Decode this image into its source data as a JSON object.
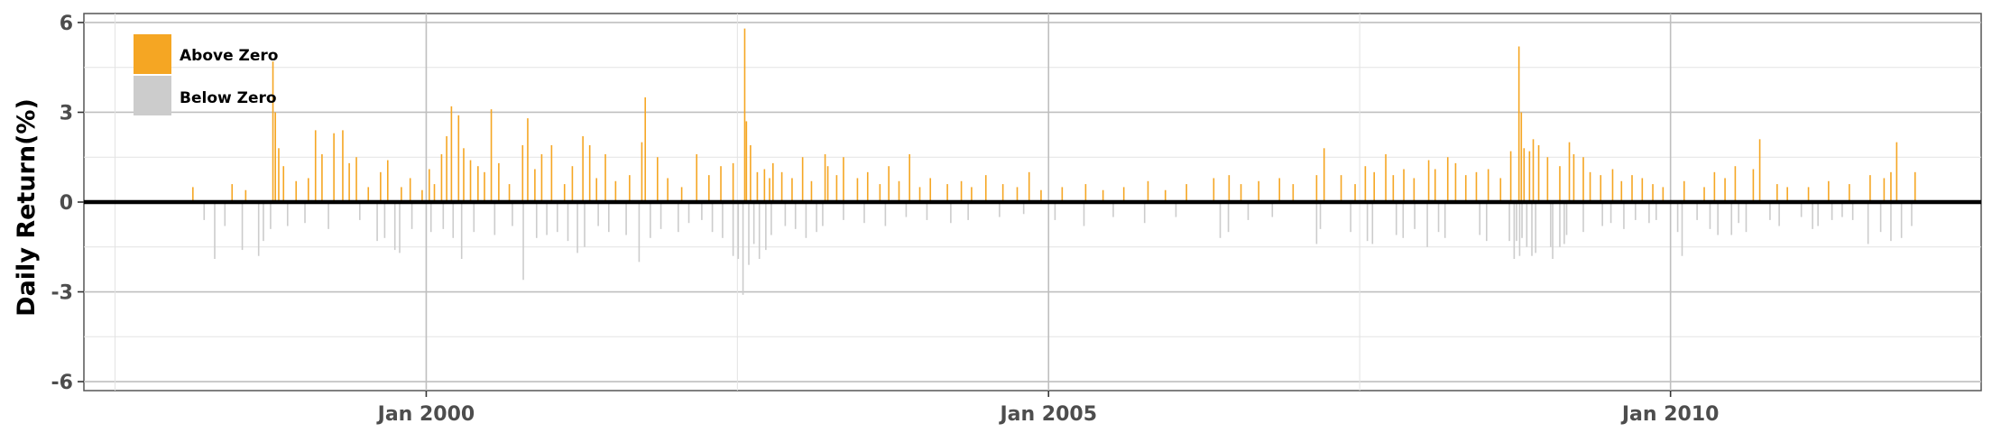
{
  "chart_data": {
    "type": "bar",
    "title": "",
    "xlabel": "",
    "ylabel": "Daily Return(%)",
    "ylim": [
      -6.3,
      6.3
    ],
    "yticks": [
      -6,
      -3,
      0,
      3,
      6
    ],
    "ytick_labels": [
      "-6",
      "-3",
      "0",
      "3",
      "6"
    ],
    "xlim": [
      "1997-04-01",
      "2012-07-01"
    ],
    "xticks": [
      "2000-01-01",
      "2005-01-01",
      "2010-01-01"
    ],
    "xtick_labels": [
      "Jan 2000",
      "Jan 2005",
      "Jan 2010"
    ],
    "grid": true,
    "legend_position": "top-left",
    "colors": {
      "above": "#f5a623",
      "below": "#cccccc",
      "zero_line": "#000000",
      "grid": "#bfbfbf"
    },
    "series": [
      {
        "name": "Above Zero",
        "points": [
          [
            "1998-02-15",
            0.5
          ],
          [
            "1998-06-10",
            0.6
          ],
          [
            "1998-07-20",
            0.4
          ],
          [
            "1998-10-08",
            4.7
          ],
          [
            "1998-10-15",
            3.0
          ],
          [
            "1998-10-25",
            1.8
          ],
          [
            "1998-11-08",
            1.2
          ],
          [
            "1998-12-15",
            0.7
          ],
          [
            "1999-01-20",
            0.8
          ],
          [
            "1999-02-10",
            2.4
          ],
          [
            "1999-03-01",
            1.6
          ],
          [
            "1999-04-05",
            2.3
          ],
          [
            "1999-05-01",
            2.4
          ],
          [
            "1999-05-20",
            1.3
          ],
          [
            "1999-06-10",
            1.5
          ],
          [
            "1999-07-15",
            0.5
          ],
          [
            "1999-08-20",
            1.0
          ],
          [
            "1999-09-10",
            1.4
          ],
          [
            "1999-10-20",
            0.5
          ],
          [
            "1999-11-15",
            0.8
          ],
          [
            "1999-12-20",
            0.4
          ],
          [
            "2000-01-10",
            1.1
          ],
          [
            "2000-01-25",
            0.6
          ],
          [
            "2000-02-15",
            1.6
          ],
          [
            "2000-03-01",
            2.2
          ],
          [
            "2000-03-15",
            3.2
          ],
          [
            "2000-04-05",
            2.9
          ],
          [
            "2000-04-20",
            1.8
          ],
          [
            "2000-05-10",
            1.4
          ],
          [
            "2000-06-01",
            1.2
          ],
          [
            "2000-06-20",
            1.0
          ],
          [
            "2000-07-10",
            3.1
          ],
          [
            "2000-08-01",
            1.3
          ],
          [
            "2000-09-01",
            0.6
          ],
          [
            "2000-10-10",
            1.9
          ],
          [
            "2000-10-25",
            2.8
          ],
          [
            "2000-11-15",
            1.1
          ],
          [
            "2000-12-05",
            1.6
          ],
          [
            "2001-01-03",
            1.9
          ],
          [
            "2001-02-10",
            0.6
          ],
          [
            "2001-03-05",
            1.2
          ],
          [
            "2001-04-05",
            2.2
          ],
          [
            "2001-04-25",
            1.9
          ],
          [
            "2001-05-15",
            0.8
          ],
          [
            "2001-06-10",
            1.6
          ],
          [
            "2001-07-10",
            0.7
          ],
          [
            "2001-08-20",
            0.9
          ],
          [
            "2001-09-25",
            2.0
          ],
          [
            "2001-10-05",
            3.5
          ],
          [
            "2001-11-10",
            1.5
          ],
          [
            "2001-12-10",
            0.8
          ],
          [
            "2002-01-20",
            0.5
          ],
          [
            "2002-03-05",
            1.6
          ],
          [
            "2002-04-10",
            0.9
          ],
          [
            "2002-05-15",
            1.2
          ],
          [
            "2002-06-20",
            1.3
          ],
          [
            "2002-07-24",
            5.8
          ],
          [
            "2002-07-29",
            2.7
          ],
          [
            "2002-08-10",
            1.9
          ],
          [
            "2002-08-30",
            1.0
          ],
          [
            "2002-09-20",
            1.1
          ],
          [
            "2002-10-05",
            0.8
          ],
          [
            "2002-10-15",
            1.3
          ],
          [
            "2002-11-10",
            1.0
          ],
          [
            "2002-12-10",
            0.8
          ],
          [
            "2003-01-10",
            1.5
          ],
          [
            "2003-02-05",
            0.7
          ],
          [
            "2003-03-17",
            1.6
          ],
          [
            "2003-03-25",
            1.2
          ],
          [
            "2003-04-20",
            0.9
          ],
          [
            "2003-05-10",
            1.5
          ],
          [
            "2003-06-20",
            0.8
          ],
          [
            "2003-07-20",
            1.0
          ],
          [
            "2003-08-25",
            0.6
          ],
          [
            "2003-09-20",
            1.2
          ],
          [
            "2003-10-20",
            0.7
          ],
          [
            "2003-11-20",
            1.6
          ],
          [
            "2003-12-20",
            0.5
          ],
          [
            "2004-01-20",
            0.8
          ],
          [
            "2004-03-10",
            0.6
          ],
          [
            "2004-04-20",
            0.7
          ],
          [
            "2004-05-20",
            0.5
          ],
          [
            "2004-07-01",
            0.9
          ],
          [
            "2004-08-20",
            0.6
          ],
          [
            "2004-10-01",
            0.5
          ],
          [
            "2004-11-05",
            1.0
          ],
          [
            "2004-12-10",
            0.4
          ],
          [
            "2005-02-10",
            0.5
          ],
          [
            "2005-04-20",
            0.6
          ],
          [
            "2005-06-10",
            0.4
          ],
          [
            "2005-08-10",
            0.5
          ],
          [
            "2005-10-20",
            0.7
          ],
          [
            "2005-12-10",
            0.4
          ],
          [
            "2006-02-10",
            0.6
          ],
          [
            "2006-05-01",
            0.8
          ],
          [
            "2006-06-15",
            0.9
          ],
          [
            "2006-07-20",
            0.6
          ],
          [
            "2006-09-10",
            0.7
          ],
          [
            "2006-11-10",
            0.8
          ],
          [
            "2006-12-20",
            0.6
          ],
          [
            "2007-02-27",
            0.9
          ],
          [
            "2007-03-21",
            1.8
          ],
          [
            "2007-05-10",
            0.9
          ],
          [
            "2007-06-20",
            0.6
          ],
          [
            "2007-07-20",
            1.2
          ],
          [
            "2007-08-15",
            1.0
          ],
          [
            "2007-09-18",
            1.6
          ],
          [
            "2007-10-10",
            0.9
          ],
          [
            "2007-11-10",
            1.1
          ],
          [
            "2007-12-10",
            0.8
          ],
          [
            "2008-01-22",
            1.4
          ],
          [
            "2008-02-10",
            1.1
          ],
          [
            "2008-03-18",
            1.5
          ],
          [
            "2008-04-10",
            1.3
          ],
          [
            "2008-05-10",
            0.9
          ],
          [
            "2008-06-10",
            1.0
          ],
          [
            "2008-07-15",
            1.1
          ],
          [
            "2008-08-20",
            0.8
          ],
          [
            "2008-09-19",
            1.7
          ],
          [
            "2008-10-13",
            5.2
          ],
          [
            "2008-10-20",
            3.0
          ],
          [
            "2008-10-28",
            1.8
          ],
          [
            "2008-11-13",
            1.7
          ],
          [
            "2008-11-24",
            2.1
          ],
          [
            "2008-12-10",
            1.9
          ],
          [
            "2009-01-05",
            1.5
          ],
          [
            "2009-02-10",
            1.2
          ],
          [
            "2009-03-10",
            2.0
          ],
          [
            "2009-03-23",
            1.6
          ],
          [
            "2009-04-20",
            1.5
          ],
          [
            "2009-05-10",
            1.0
          ],
          [
            "2009-06-10",
            0.9
          ],
          [
            "2009-07-15",
            1.1
          ],
          [
            "2009-08-10",
            0.7
          ],
          [
            "2009-09-10",
            0.9
          ],
          [
            "2009-10-10",
            0.8
          ],
          [
            "2009-11-10",
            0.6
          ],
          [
            "2009-12-10",
            0.5
          ],
          [
            "2010-02-10",
            0.7
          ],
          [
            "2010-04-10",
            0.5
          ],
          [
            "2010-05-10",
            1.0
          ],
          [
            "2010-06-10",
            0.8
          ],
          [
            "2010-07-10",
            1.2
          ],
          [
            "2010-09-01",
            1.1
          ],
          [
            "2010-09-20",
            2.1
          ],
          [
            "2010-11-10",
            0.6
          ],
          [
            "2010-12-10",
            0.5
          ],
          [
            "2011-02-10",
            0.5
          ],
          [
            "2011-04-10",
            0.7
          ],
          [
            "2011-06-10",
            0.6
          ],
          [
            "2011-08-10",
            0.9
          ],
          [
            "2011-09-20",
            0.8
          ],
          [
            "2011-10-10",
            1.0
          ],
          [
            "2011-10-27",
            2.0
          ],
          [
            "2011-12-20",
            1.0
          ]
        ]
      },
      {
        "name": "Below Zero",
        "points": [
          [
            "1998-03-20",
            -0.6
          ],
          [
            "1998-04-20",
            -1.9
          ],
          [
            "1998-05-20",
            -0.8
          ],
          [
            "1998-07-10",
            -1.6
          ],
          [
            "1998-08-27",
            -1.8
          ],
          [
            "1998-09-10",
            -1.3
          ],
          [
            "1998-10-01",
            -0.9
          ],
          [
            "1998-11-20",
            -0.8
          ],
          [
            "1999-01-10",
            -0.7
          ],
          [
            "1999-03-20",
            -0.9
          ],
          [
            "1999-06-20",
            -0.6
          ],
          [
            "1999-08-10",
            -1.3
          ],
          [
            "1999-09-01",
            -1.2
          ],
          [
            "1999-10-01",
            -1.6
          ],
          [
            "1999-10-15",
            -1.7
          ],
          [
            "1999-11-20",
            -0.9
          ],
          [
            "2000-01-15",
            -1.0
          ],
          [
            "2000-02-20",
            -0.9
          ],
          [
            "2000-03-20",
            -1.2
          ],
          [
            "2000-04-14",
            -1.9
          ],
          [
            "2000-05-20",
            -1.0
          ],
          [
            "2000-07-20",
            -1.1
          ],
          [
            "2000-09-10",
            -0.8
          ],
          [
            "2000-10-12",
            -2.6
          ],
          [
            "2000-11-20",
            -1.2
          ],
          [
            "2000-12-20",
            -1.1
          ],
          [
            "2001-01-20",
            -1.0
          ],
          [
            "2001-02-20",
            -1.3
          ],
          [
            "2001-03-20",
            -1.7
          ],
          [
            "2001-04-10",
            -1.5
          ],
          [
            "2001-05-20",
            -0.8
          ],
          [
            "2001-06-20",
            -1.0
          ],
          [
            "2001-08-10",
            -1.1
          ],
          [
            "2001-09-17",
            -2.0
          ],
          [
            "2001-10-20",
            -1.2
          ],
          [
            "2001-11-20",
            -0.9
          ],
          [
            "2002-01-10",
            -1.0
          ],
          [
            "2002-02-10",
            -0.7
          ],
          [
            "2002-03-20",
            -0.6
          ],
          [
            "2002-04-20",
            -1.0
          ],
          [
            "2002-05-20",
            -1.2
          ],
          [
            "2002-06-20",
            -1.8
          ],
          [
            "2002-07-05",
            -1.9
          ],
          [
            "2002-07-19",
            -3.1
          ],
          [
            "2002-08-05",
            -2.1
          ],
          [
            "2002-08-20",
            -1.4
          ],
          [
            "2002-09-05",
            -1.9
          ],
          [
            "2002-09-24",
            -1.6
          ],
          [
            "2002-10-10",
            -1.1
          ],
          [
            "2002-11-20",
            -0.8
          ],
          [
            "2002-12-20",
            -0.9
          ],
          [
            "2003-01-20",
            -1.2
          ],
          [
            "2003-02-20",
            -1.0
          ],
          [
            "2003-03-10",
            -0.8
          ],
          [
            "2003-05-10",
            -0.6
          ],
          [
            "2003-07-10",
            -0.7
          ],
          [
            "2003-09-10",
            -0.8
          ],
          [
            "2003-11-10",
            -0.5
          ],
          [
            "2004-01-10",
            -0.6
          ],
          [
            "2004-03-20",
            -0.7
          ],
          [
            "2004-05-10",
            -0.6
          ],
          [
            "2004-08-10",
            -0.5
          ],
          [
            "2004-10-20",
            -0.4
          ],
          [
            "2005-01-20",
            -0.6
          ],
          [
            "2005-04-15",
            -0.8
          ],
          [
            "2005-07-10",
            -0.5
          ],
          [
            "2005-10-10",
            -0.7
          ],
          [
            "2006-01-10",
            -0.5
          ],
          [
            "2006-05-20",
            -1.2
          ],
          [
            "2006-06-13",
            -1.0
          ],
          [
            "2006-08-10",
            -0.6
          ],
          [
            "2006-10-20",
            -0.5
          ],
          [
            "2007-02-27",
            -1.4
          ],
          [
            "2007-03-10",
            -0.9
          ],
          [
            "2007-06-07",
            -1.0
          ],
          [
            "2007-07-26",
            -1.3
          ],
          [
            "2007-08-10",
            -1.4
          ],
          [
            "2007-10-19",
            -1.1
          ],
          [
            "2007-11-08",
            -1.2
          ],
          [
            "2007-12-12",
            -0.9
          ],
          [
            "2008-01-18",
            -1.5
          ],
          [
            "2008-02-20",
            -1.0
          ],
          [
            "2008-03-10",
            -1.2
          ],
          [
            "2008-06-20",
            -1.1
          ],
          [
            "2008-07-10",
            -1.3
          ],
          [
            "2008-09-15",
            -1.3
          ],
          [
            "2008-09-29",
            -1.9
          ],
          [
            "2008-10-06",
            -1.3
          ],
          [
            "2008-10-15",
            -1.8
          ],
          [
            "2008-10-22",
            -1.2
          ],
          [
            "2008-11-05",
            -1.5
          ],
          [
            "2008-11-20",
            -1.8
          ],
          [
            "2008-12-01",
            -1.7
          ],
          [
            "2009-01-14",
            -1.5
          ],
          [
            "2009-01-20",
            -1.9
          ],
          [
            "2009-02-10",
            -1.5
          ],
          [
            "2009-02-23",
            -1.4
          ],
          [
            "2009-03-02",
            -1.1
          ],
          [
            "2009-04-20",
            -1.0
          ],
          [
            "2009-06-15",
            -0.8
          ],
          [
            "2009-07-10",
            -0.7
          ],
          [
            "2009-08-17",
            -0.9
          ],
          [
            "2009-09-20",
            -0.6
          ],
          [
            "2009-10-30",
            -0.7
          ],
          [
            "2009-11-20",
            -0.6
          ],
          [
            "2010-01-22",
            -1.0
          ],
          [
            "2010-02-04",
            -1.8
          ],
          [
            "2010-03-20",
            -0.6
          ],
          [
            "2010-04-27",
            -0.9
          ],
          [
            "2010-05-20",
            -1.1
          ],
          [
            "2010-06-29",
            -1.1
          ],
          [
            "2010-07-20",
            -0.7
          ],
          [
            "2010-08-11",
            -1.0
          ],
          [
            "2010-10-20",
            -0.6
          ],
          [
            "2010-11-16",
            -0.8
          ],
          [
            "2011-01-20",
            -0.5
          ],
          [
            "2011-02-22",
            -0.9
          ],
          [
            "2011-03-10",
            -0.8
          ],
          [
            "2011-04-20",
            -0.6
          ],
          [
            "2011-05-20",
            -0.5
          ],
          [
            "2011-06-20",
            -0.6
          ],
          [
            "2011-08-04",
            -1.4
          ],
          [
            "2011-09-10",
            -1.0
          ],
          [
            "2011-10-10",
            -1.3
          ],
          [
            "2011-11-10",
            -1.2
          ],
          [
            "2011-12-10",
            -0.8
          ]
        ]
      }
    ]
  }
}
